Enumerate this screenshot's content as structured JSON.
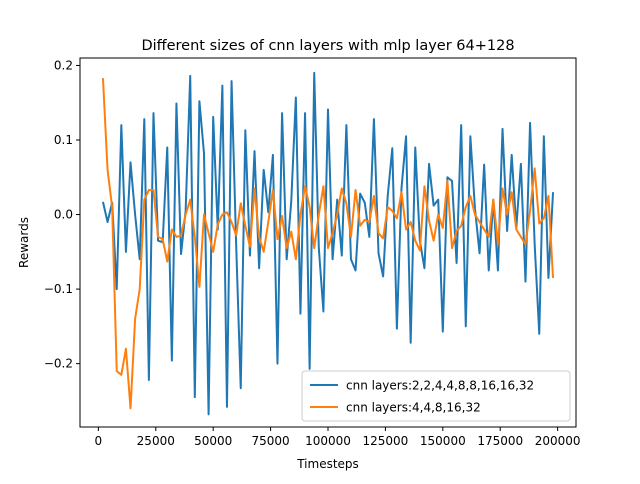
{
  "chart_data": {
    "type": "line",
    "title": "Different sizes of cnn layers with mlp layer 64+128",
    "xlabel": "Timesteps",
    "ylabel": "Rewards",
    "xlim": [
      -8000,
      208000
    ],
    "ylim": [
      -0.285,
      0.21
    ],
    "xticks": [
      0,
      25000,
      50000,
      75000,
      100000,
      125000,
      150000,
      175000,
      200000
    ],
    "xtick_labels": [
      "0",
      "25000",
      "50000",
      "75000",
      "100000",
      "125000",
      "150000",
      "175000",
      "200000"
    ],
    "yticks": [
      -0.2,
      -0.1,
      0.0,
      0.1,
      0.2
    ],
    "ytick_labels": [
      "−0.2",
      "−0.1",
      "0.0",
      "0.1",
      "0.2"
    ],
    "grid": false,
    "legend_position": "lower right",
    "series": [
      {
        "name": "cnn layers:2,2,4,4,8,8,16,16,32",
        "color": "#1f77b4",
        "x": [
          2000,
          4000,
          6000,
          8000,
          10000,
          12000,
          14000,
          16000,
          18000,
          20000,
          22000,
          24000,
          26000,
          28000,
          30000,
          32000,
          34000,
          36000,
          38000,
          40000,
          42000,
          44000,
          46000,
          48000,
          50000,
          52000,
          54000,
          56000,
          58000,
          60000,
          62000,
          64000,
          66000,
          68000,
          70000,
          72000,
          74000,
          76000,
          78000,
          80000,
          82000,
          84000,
          86000,
          88000,
          90000,
          92000,
          94000,
          96000,
          98000,
          100000,
          102000,
          104000,
          106000,
          108000,
          110000,
          112000,
          114000,
          116000,
          118000,
          120000,
          122000,
          124000,
          126000,
          128000,
          130000,
          132000,
          134000,
          136000,
          138000,
          140000,
          142000,
          144000,
          146000,
          148000,
          150000,
          152000,
          154000,
          156000,
          158000,
          160000,
          162000,
          164000,
          166000,
          168000,
          170000,
          172000,
          174000,
          176000,
          178000,
          180000,
          182000,
          184000,
          186000,
          188000,
          190000,
          192000,
          194000,
          196000,
          198000
        ],
        "values": [
          0.017,
          -0.01,
          0.016,
          -0.1,
          0.12,
          -0.05,
          0.07,
          0.0,
          -0.06,
          0.128,
          -0.222,
          0.136,
          -0.035,
          -0.037,
          0.09,
          -0.196,
          0.149,
          -0.053,
          0.005,
          0.186,
          -0.245,
          0.152,
          0.082,
          -0.268,
          0.131,
          -0.02,
          0.173,
          -0.258,
          0.179,
          -0.04,
          -0.233,
          0.113,
          -0.055,
          0.085,
          -0.072,
          0.06,
          0.003,
          0.08,
          -0.2,
          0.136,
          -0.06,
          0.018,
          0.157,
          -0.133,
          0.136,
          -0.207,
          0.19,
          -0.045,
          -0.13,
          0.141,
          -0.06,
          0.02,
          -0.055,
          0.12,
          -0.06,
          -0.075,
          0.028,
          0.016,
          -0.03,
          0.128,
          -0.052,
          -0.083,
          0.025,
          0.089,
          -0.153,
          0.035,
          0.105,
          -0.172,
          0.09,
          -0.035,
          -0.072,
          0.068,
          0.012,
          0.02,
          -0.157,
          0.05,
          0.045,
          -0.065,
          0.12,
          -0.15,
          0.105,
          0.008,
          -0.052,
          0.067,
          -0.075,
          0.02,
          -0.075,
          0.115,
          -0.022,
          0.08,
          -0.018,
          0.068,
          -0.09,
          0.123,
          -0.04,
          -0.16,
          0.105,
          -0.085,
          0.03
        ]
      },
      {
        "name": "cnn layers:4,4,8,16,32",
        "color": "#ff7f0e",
        "x": [
          2000,
          4000,
          6000,
          8000,
          10000,
          12000,
          14000,
          16000,
          18000,
          20000,
          22000,
          24000,
          26000,
          28000,
          30000,
          32000,
          34000,
          36000,
          38000,
          40000,
          42000,
          44000,
          46000,
          48000,
          50000,
          52000,
          54000,
          56000,
          58000,
          60000,
          62000,
          64000,
          66000,
          68000,
          70000,
          72000,
          74000,
          76000,
          78000,
          80000,
          82000,
          84000,
          86000,
          88000,
          90000,
          92000,
          94000,
          96000,
          98000,
          100000,
          102000,
          104000,
          106000,
          108000,
          110000,
          112000,
          114000,
          116000,
          118000,
          120000,
          122000,
          124000,
          126000,
          128000,
          130000,
          132000,
          134000,
          136000,
          138000,
          140000,
          142000,
          144000,
          146000,
          148000,
          150000,
          152000,
          154000,
          156000,
          158000,
          160000,
          162000,
          164000,
          166000,
          168000,
          170000,
          172000,
          174000,
          176000,
          178000,
          180000,
          182000,
          184000,
          186000,
          188000,
          190000,
          192000,
          194000,
          196000,
          198000
        ],
        "values": [
          0.183,
          0.06,
          0.01,
          -0.21,
          -0.215,
          -0.18,
          -0.26,
          -0.14,
          -0.1,
          0.02,
          0.033,
          0.033,
          -0.03,
          -0.033,
          -0.063,
          -0.02,
          -0.03,
          -0.028,
          0.0,
          0.02,
          -0.03,
          -0.097,
          0.0,
          -0.025,
          -0.05,
          -0.013,
          0.0,
          0.003,
          -0.01,
          -0.028,
          0.015,
          -0.015,
          -0.043,
          0.035,
          -0.03,
          -0.05,
          -0.01,
          0.033,
          -0.033,
          -0.002,
          -0.045,
          -0.023,
          -0.06,
          0.0,
          0.038,
          0.01,
          -0.045,
          0.0,
          0.038,
          -0.045,
          -0.025,
          0.0,
          0.035,
          0.015,
          -0.03,
          0.033,
          -0.015,
          -0.007,
          -0.01,
          0.025,
          -0.025,
          -0.032,
          0.01,
          0.005,
          -0.005,
          0.03,
          -0.02,
          -0.01,
          -0.035,
          -0.048,
          0.038,
          -0.008,
          -0.035,
          0.0,
          -0.018,
          0.045,
          -0.045,
          -0.022,
          -0.015,
          0.01,
          0.025,
          0.0,
          -0.01,
          -0.02,
          -0.03,
          0.02,
          -0.04,
          0.035,
          0.0,
          0.03,
          -0.02,
          -0.03,
          -0.04,
          0.005,
          0.062,
          -0.012,
          -0.005,
          0.025,
          -0.085
        ]
      }
    ]
  }
}
